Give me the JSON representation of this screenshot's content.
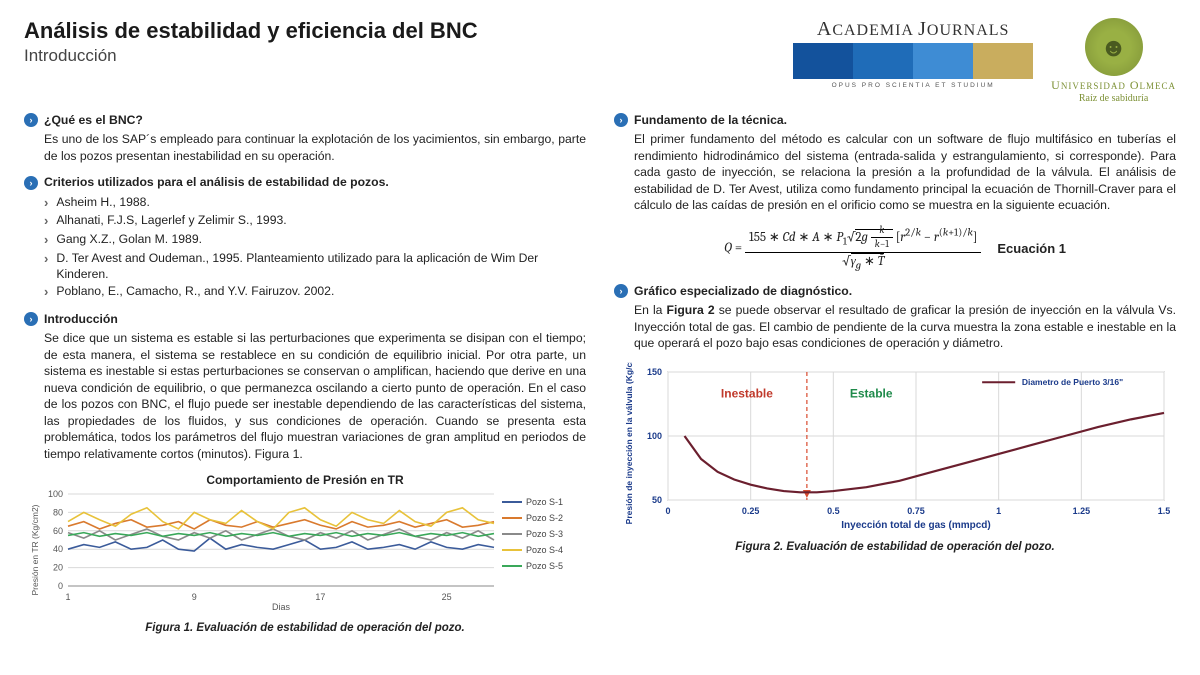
{
  "title": "Análisis de estabilidad y eficiencia del BNC",
  "subtitle": "Introducción",
  "logos": {
    "aj_name": "ACADEMIA JOURNALS",
    "aj_tagline": "OPUS PRO SCIENTIA ET STUDIUM",
    "aj_bar_colors": [
      "#13529c",
      "#1f6cb8",
      "#3e8cd4",
      "#c9ad5e"
    ],
    "uo_name": "UNIVERSIDAD OLMECA",
    "uo_tagline": "Raíz de sabiduría",
    "uo_green": "#7d9136"
  },
  "left": {
    "s1_head": "¿Qué es el BNC?",
    "s1_body": "Es uno de los SAP´s empleado para continuar la explotación de los yacimientos, sin embargo, parte de los pozos presentan inestabilidad en su operación.",
    "s2_head": "Criterios utilizados para el análisis de estabilidad de pozos.",
    "refs": [
      "Asheim H., 1988.",
      "Alhanati, F.J.S, Lagerlef y Zelimir S., 1993.",
      "Gang X.Z., Golan M. 1989.",
      "D. Ter Avest and Oudeman., 1995. Planteamiento utilizado para la aplicación de Wim Der Kinderen.",
      "Poblano, E., Camacho, R., and Y.V. Fairuzov. 2002."
    ],
    "s3_head": "Introducción",
    "s3_body": "Se dice que un sistema es estable si las perturbaciones que experimenta se disipan con el tiempo; de esta manera, el sistema se restablece en su condición de equilibrio inicial. Por otra parte, un sistema es inestable si estas perturbaciones se conservan o amplifican, haciendo que derive en una nueva condición de equilibrio, o que permanezca oscilando a cierto punto de operación.  En el caso de los pozos con BNC, el flujo puede ser inestable dependiendo de las características del sistema, las propiedades de los fluidos, y sus condiciones de operación. Cuando se presenta esta problemática, todos los parámetros del flujo muestran variaciones de gran amplitud en periodos de tiempo relativamente cortos (minutos). Figura 1."
  },
  "right": {
    "s1_head": "Fundamento de la técnica.",
    "s1_body": "El primer fundamento del método es calcular con un software de flujo multifásico en tuberías el rendimiento hidrodinámico del sistema (entrada-salida y estrangulamiento, si corresponde). Para cada gasto de inyección, se relaciona la presión a la profundidad de la válvula. El análisis de estabilidad de D. Ter Avest, utiliza como fundamento principal la ecuación de Thornill-Craver para el cálculo de las caídas de presión en el orificio como se muestra en la siguiente ecuación.",
    "eq_label": "Ecuación 1",
    "s2_head": "Gráfico especializado de diagnóstico.",
    "s2_body": "En la Figura 2 se puede observar el resultado de graficar la presión de inyección en la válvula Vs. Inyección total de gas. El cambio de pendiente de la curva muestra la zona estable e inestable en la que operará el pozo bajo esas condiciones de operación y diámetro."
  },
  "chart1": {
    "title": "Comportamiento de Presión en TR",
    "caption": "Figura 1. Evaluación de estabilidad de operación del pozo.",
    "ylabel": "Presión en TR (Kg/cm2)",
    "xlabel": "Dias",
    "ylim": [
      0,
      100
    ],
    "ytick_step": 20,
    "xticks": [
      1,
      9,
      17,
      25
    ],
    "series": [
      {
        "name": "Pozo S-1",
        "color": "#3b5b9a",
        "data": [
          40,
          45,
          42,
          48,
          40,
          42,
          50,
          40,
          38,
          52,
          40,
          45,
          42,
          40,
          45,
          50,
          40,
          42,
          48,
          40,
          42,
          45,
          40,
          48,
          42,
          40,
          45,
          42
        ]
      },
      {
        "name": "Pozo S-2",
        "color": "#d97a2e",
        "data": [
          65,
          70,
          62,
          68,
          72,
          64,
          66,
          70,
          62,
          72,
          66,
          64,
          70,
          64,
          68,
          72,
          66,
          62,
          70,
          64,
          66,
          70,
          64,
          68,
          72,
          64,
          66,
          70
        ]
      },
      {
        "name": "Pozo S-3",
        "color": "#8a8a8a",
        "data": [
          58,
          52,
          60,
          50,
          56,
          62,
          54,
          50,
          58,
          52,
          60,
          50,
          56,
          62,
          54,
          50,
          58,
          52,
          60,
          50,
          56,
          62,
          54,
          50,
          58,
          52,
          60,
          50
        ]
      },
      {
        "name": "Pozo S-4",
        "color": "#e8c23a",
        "data": [
          70,
          80,
          72,
          65,
          78,
          85,
          70,
          62,
          80,
          72,
          68,
          82,
          70,
          62,
          80,
          85,
          72,
          65,
          80,
          72,
          68,
          82,
          70,
          65,
          80,
          85,
          72,
          68
        ]
      },
      {
        "name": "Pozo S-5",
        "color": "#3aa85a",
        "data": [
          55,
          58,
          54,
          57,
          55,
          58,
          54,
          57,
          55,
          58,
          54,
          57,
          55,
          58,
          54,
          57,
          55,
          58,
          54,
          57,
          55,
          58,
          54,
          57,
          55,
          58,
          54,
          57
        ]
      }
    ],
    "bg": "#ffffff",
    "grid": "#d9d9d9",
    "axis": "#888",
    "label_fontsize": 9
  },
  "chart2": {
    "caption": "Figura 2. Evaluación de estabilidad de operación del pozo.",
    "ylabel": "Presión de inyección en la válvula (Kg/cm2)",
    "xlabel": "Inyección total de gas (mmpcd)",
    "ylim": [
      50,
      150
    ],
    "yticks": [
      50,
      100,
      150
    ],
    "xlim": [
      0,
      1.5
    ],
    "xticks": [
      0,
      0.25,
      0.5,
      0.75,
      1,
      1.25,
      1.5
    ],
    "legend": "Diametro de Puerto 3/16\"",
    "line_color": "#6b1f2e",
    "data": [
      [
        0.05,
        100
      ],
      [
        0.1,
        82
      ],
      [
        0.15,
        72
      ],
      [
        0.2,
        66
      ],
      [
        0.25,
        62
      ],
      [
        0.3,
        59
      ],
      [
        0.35,
        57
      ],
      [
        0.4,
        56
      ],
      [
        0.45,
        56
      ],
      [
        0.5,
        57
      ],
      [
        0.6,
        60
      ],
      [
        0.7,
        65
      ],
      [
        0.8,
        72
      ],
      [
        0.9,
        79
      ],
      [
        1.0,
        86
      ],
      [
        1.1,
        93
      ],
      [
        1.2,
        100
      ],
      [
        1.3,
        107
      ],
      [
        1.4,
        113
      ],
      [
        1.5,
        118
      ]
    ],
    "divider_x": 0.42,
    "label_unstable": "Inestable",
    "unstable_color": "#c0392b",
    "label_stable": "Estable",
    "stable_color": "#1e8a4a",
    "axis_color": "#1a3a8a",
    "grid": "#d9d9d9",
    "label_fontsize": 9
  }
}
